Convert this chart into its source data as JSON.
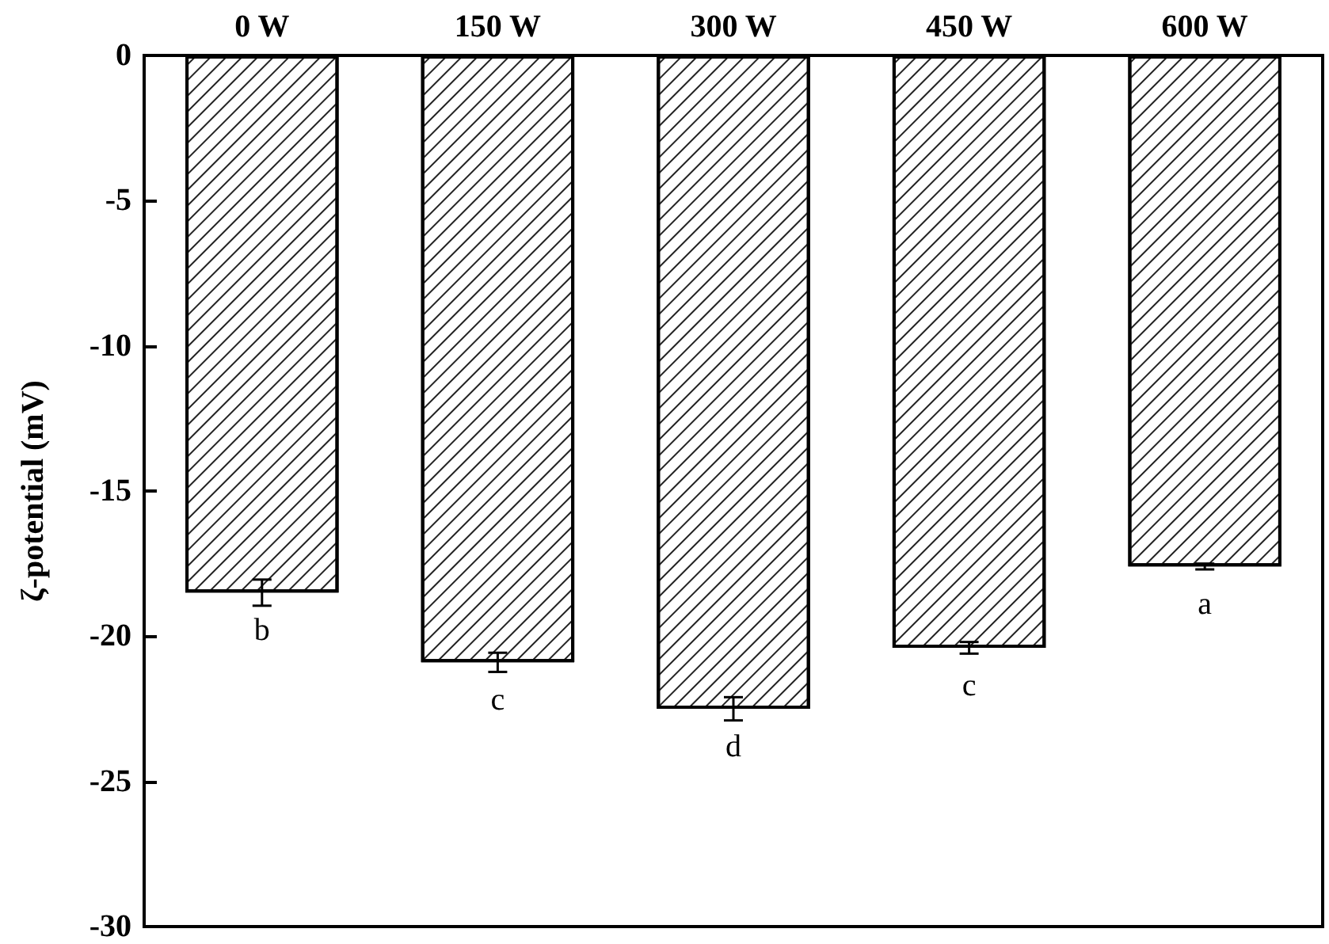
{
  "chart_data": {
    "type": "bar",
    "ylabel": "ζ-potential (mV)",
    "categories": [
      "0 W",
      "150 W",
      "300 W",
      "450 W",
      "600 W"
    ],
    "values": [
      -18.5,
      -20.9,
      -22.5,
      -20.4,
      -17.6
    ],
    "errors": [
      0.45,
      0.33,
      0.4,
      0.2,
      0.1
    ],
    "color": "#ffffff",
    "ylim": [
      -30,
      0
    ],
    "yticks": [
      -30,
      -25,
      -20,
      -15,
      -10,
      -5,
      0
    ],
    "grid": false,
    "annotations": [
      {
        "text": "b",
        "x": "0 W",
        "y": -18.5
      },
      {
        "text": "c",
        "x": "150 W",
        "y": -20.9
      },
      {
        "text": "d",
        "x": "300 W",
        "y": -22.5
      },
      {
        "text": "c",
        "x": "450 W",
        "y": -20.4
      },
      {
        "text": "a",
        "x": "600 W",
        "y": -17.6
      }
    ]
  }
}
